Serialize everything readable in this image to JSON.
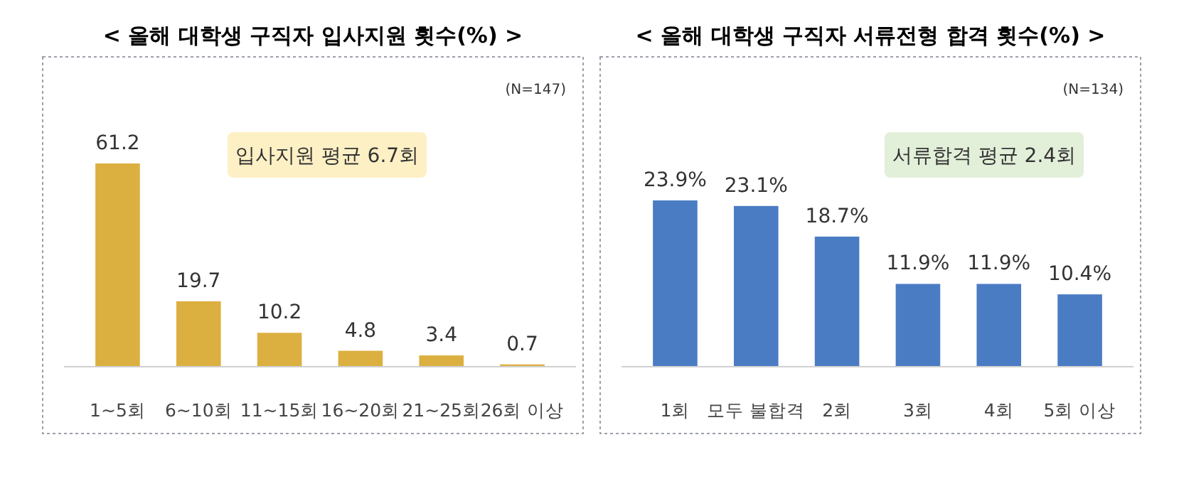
{
  "chart_data": [
    {
      "type": "bar",
      "title": "< 올해 대학생 구직자 입사지원 횟수(%) >",
      "categories": [
        "1~5회",
        "6~10회",
        "11~15회",
        "16~20회",
        "21~25회",
        "26회 이상"
      ],
      "values": [
        61.2,
        19.7,
        10.2,
        4.8,
        3.4,
        0.7
      ],
      "color": "#dcb040",
      "data_labels": true,
      "annotations": [
        "(N=147)",
        "입사지원 평균 6.7회"
      ]
    },
    {
      "type": "bar",
      "title": "< 올해 대학생 구직자 서류전형 합격 횟수(%) >",
      "categories": [
        "1회",
        "모두 불합격",
        "2회",
        "3회",
        "4회",
        "5회 이상"
      ],
      "values": [
        23.9,
        23.1,
        18.7,
        11.9,
        11.9,
        10.4
      ],
      "value_labels": [
        "23.9%",
        "23.1%",
        "18.7%",
        "11.9%",
        "11.9%",
        "10.4%"
      ],
      "color": "#4a7cc4",
      "annotations": [
        "(N=134)",
        "서류합격 평균 2.4회"
      ]
    }
  ]
}
